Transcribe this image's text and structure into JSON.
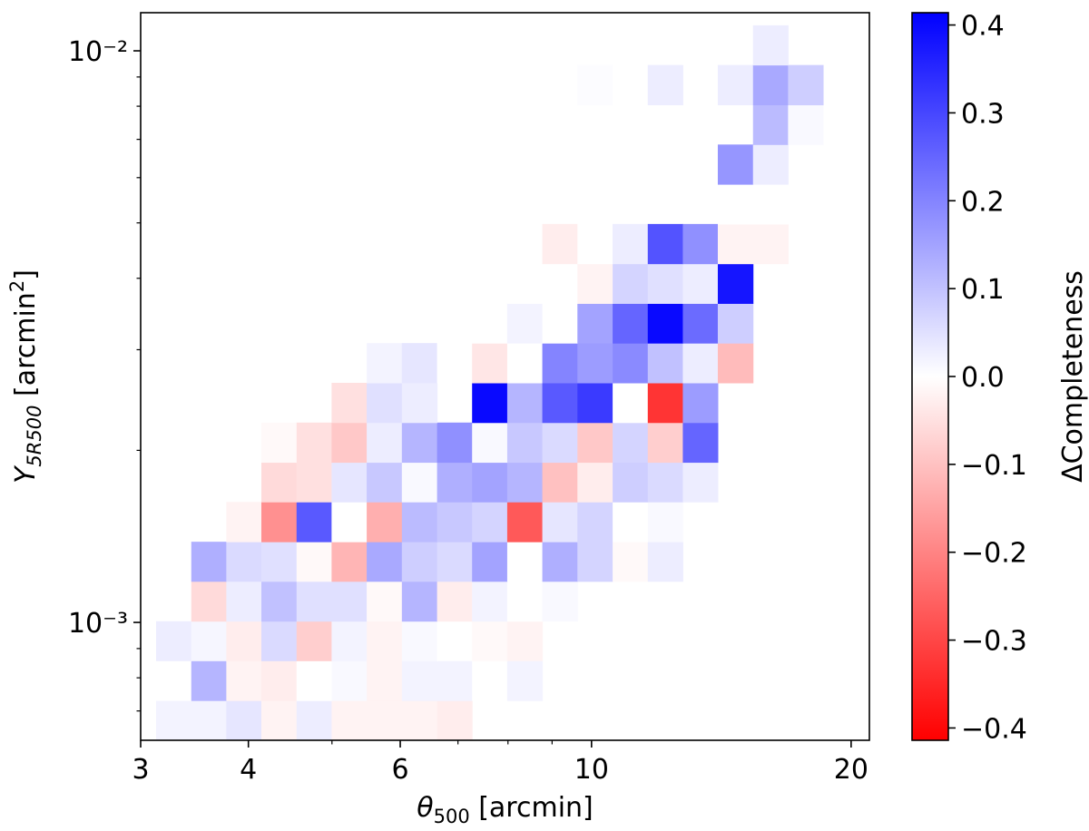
{
  "chart_data": {
    "type": "heatmap",
    "xlabel": {
      "symbol": "θ",
      "subscript": "500",
      "text": " [arcmin]"
    },
    "ylabel": {
      "symbol": "Y",
      "subscript": "5R500",
      "text": " [arcmin",
      "superscript": "2",
      "end": "]"
    },
    "colorbar_label": "ΔCompleteness",
    "xscale": "log",
    "yscale": "log",
    "xlim": [
      3.0,
      21.0
    ],
    "ylim": [
      0.000622,
      0.01166
    ],
    "xticks": [
      3,
      4,
      6,
      10,
      20
    ],
    "xticks_minor": [
      5,
      7,
      8,
      9
    ],
    "yticks": [
      {
        "value": 0.01,
        "label": "10⁻²"
      },
      {
        "value": 0.001,
        "label": "10⁻³"
      }
    ],
    "yticks_minor": [
      0.0007,
      0.0008,
      0.0009,
      0.002,
      0.003,
      0.004,
      0.005,
      0.006,
      0.007,
      0.008,
      0.009
    ],
    "colormap": [
      "#ff0000",
      "#ffffff",
      "#0000ff"
    ],
    "vlim": [
      -0.414,
      0.414
    ],
    "cticks": [
      {
        "value": -0.4,
        "label": "−0.4"
      },
      {
        "value": -0.3,
        "label": "−0.3"
      },
      {
        "value": -0.2,
        "label": "−0.2"
      },
      {
        "value": -0.1,
        "label": "−0.1"
      },
      {
        "value": 0,
        "label": "0.0"
      },
      0.1,
      0.2,
      0.3,
      0.4
    ],
    "x_edges": [
      3.126,
      3.434,
      3.771,
      4.141,
      4.549,
      4.995,
      5.486,
      6.026,
      6.62,
      7.269,
      7.984,
      8.768,
      9.63,
      10.58,
      11.62,
      12.76,
      14.01,
      15.39,
      16.9,
      18.56
    ],
    "y_edges": [
      0.000622,
      0.00073,
      0.000857,
      0.001005,
      0.00118,
      0.001384,
      0.001625,
      0.001906,
      0.002237,
      0.002625,
      0.003081,
      0.003615,
      0.004242,
      0.004978,
      0.005842,
      0.006856,
      0.008045,
      0.009445,
      0.01108
    ],
    "z": [
      [
        0.02,
        0.02,
        0.04,
        -0.02,
        0.03,
        -0.02,
        -0.02,
        -0.02,
        -0.03,
        null,
        null,
        null,
        null,
        null,
        null,
        null,
        null,
        null,
        null
      ],
      [
        0,
        0.12,
        -0.02,
        -0.03,
        0,
        0.01,
        -0.02,
        0.02,
        0.02,
        0,
        0.02,
        null,
        null,
        null,
        null,
        null,
        null,
        null,
        null
      ],
      [
        0.03,
        0.015,
        -0.03,
        0.06,
        -0.08,
        0.02,
        -0.02,
        0.01,
        0,
        -0.01,
        -0.02,
        null,
        null,
        null,
        null,
        null,
        null,
        null,
        null
      ],
      [
        null,
        -0.06,
        0.03,
        0.1,
        0.05,
        0.05,
        -0.01,
        0.12,
        -0.03,
        0.02,
        0,
        0.01,
        null,
        null,
        null,
        null,
        null,
        null,
        null
      ],
      [
        null,
        0.13,
        0.06,
        0.05,
        -0.01,
        -0.12,
        0.14,
        0.08,
        0.06,
        0.15,
        0,
        0.13,
        0.07,
        -0.01,
        0.03,
        null,
        null,
        null,
        null
      ],
      [
        null,
        null,
        -0.02,
        -0.18,
        0.27,
        0,
        -0.13,
        0.11,
        0.09,
        0.07,
        -0.27,
        0.04,
        0.07,
        0,
        0.01,
        null,
        null,
        null,
        null
      ],
      [
        null,
        null,
        null,
        -0.06,
        -0.05,
        0.04,
        0.09,
        0.01,
        0.13,
        0.15,
        0.12,
        -0.1,
        -0.03,
        0.08,
        0.06,
        0.03,
        null,
        null,
        null
      ],
      [
        null,
        null,
        null,
        -0.01,
        -0.05,
        -0.09,
        0.03,
        0.12,
        0.18,
        0.01,
        0.09,
        0.06,
        -0.09,
        0.07,
        -0.08,
        0.25,
        null,
        null,
        null
      ],
      [
        null,
        null,
        null,
        null,
        null,
        -0.05,
        0.05,
        0.03,
        null,
        0.4,
        0.12,
        0.27,
        0.32,
        0,
        -0.33,
        0.16,
        null,
        null,
        null
      ],
      [
        null,
        null,
        null,
        null,
        null,
        null,
        0.02,
        0.04,
        0,
        -0.04,
        0,
        0.2,
        0.16,
        0.19,
        0.1,
        0.03,
        -0.11,
        null,
        null
      ],
      [
        null,
        null,
        null,
        null,
        null,
        null,
        null,
        null,
        0,
        0,
        0.02,
        0,
        0.15,
        0.25,
        0.4,
        0.24,
        0.08,
        null,
        null
      ],
      [
        null,
        null,
        null,
        null,
        null,
        null,
        null,
        null,
        null,
        null,
        0,
        0,
        -0.02,
        0.07,
        0.05,
        0.03,
        0.38,
        null,
        null
      ],
      [
        null,
        null,
        null,
        null,
        null,
        null,
        null,
        null,
        null,
        null,
        null,
        -0.03,
        0,
        0.03,
        0.28,
        0.18,
        -0.02,
        -0.02,
        null
      ],
      [
        null,
        null,
        null,
        null,
        null,
        null,
        null,
        null,
        null,
        null,
        null,
        null,
        null,
        null,
        null,
        null,
        0,
        0,
        null
      ],
      [
        null,
        null,
        null,
        null,
        null,
        null,
        null,
        null,
        null,
        null,
        null,
        null,
        null,
        null,
        null,
        null,
        0.17,
        0.03,
        null
      ],
      [
        null,
        null,
        null,
        null,
        null,
        null,
        null,
        null,
        null,
        null,
        null,
        null,
        null,
        null,
        null,
        null,
        null,
        0.11,
        0.01
      ],
      [
        null,
        null,
        null,
        null,
        null,
        null,
        null,
        null,
        null,
        null,
        null,
        null,
        0.005,
        null,
        0.03,
        null,
        0.03,
        0.14,
        0.08
      ],
      [
        null,
        null,
        null,
        null,
        null,
        null,
        null,
        null,
        null,
        null,
        null,
        null,
        null,
        null,
        null,
        null,
        null,
        0.03,
        null
      ]
    ]
  }
}
